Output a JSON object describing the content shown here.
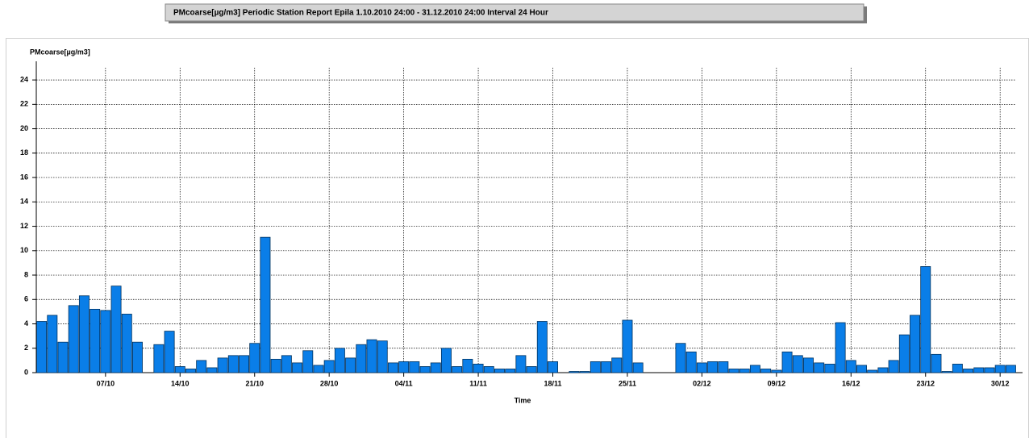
{
  "chart_data": {
    "type": "bar",
    "title": "PMcoarse[µg/m3] Periodic Station Report Epila 1.10.2010 24:00 - 31.12.2010 24:00 Interval 24 Hour",
    "y_label": "PMcoarse[µg/m3]",
    "x_label": "Time",
    "categories": [
      null,
      null,
      null,
      null,
      null,
      null,
      "07/10",
      null,
      null,
      null,
      null,
      null,
      null,
      "14/10",
      null,
      null,
      null,
      null,
      null,
      null,
      "21/10",
      null,
      null,
      null,
      null,
      null,
      null,
      "28/10",
      null,
      null,
      null,
      null,
      null,
      null,
      "04/11",
      null,
      null,
      null,
      null,
      null,
      null,
      "11/11",
      null,
      null,
      null,
      null,
      null,
      null,
      "18/11",
      null,
      null,
      null,
      null,
      null,
      null,
      "25/11",
      null,
      null,
      null,
      null,
      null,
      null,
      "02/12",
      null,
      null,
      null,
      null,
      null,
      null,
      "09/12",
      null,
      null,
      null,
      null,
      null,
      null,
      "16/12",
      null,
      null,
      null,
      null,
      null,
      null,
      "23/12",
      null,
      null,
      null,
      null,
      null,
      null,
      "30/12",
      null
    ],
    "values": [
      4.2,
      4.7,
      2.5,
      5.5,
      6.3,
      5.2,
      5.1,
      7.1,
      4.8,
      2.5,
      null,
      2.3,
      3.4,
      0.5,
      0.3,
      1.0,
      0.4,
      1.2,
      1.4,
      1.4,
      2.4,
      11.1,
      1.1,
      1.4,
      0.8,
      1.8,
      0.6,
      1.0,
      2.0,
      1.2,
      2.3,
      2.7,
      2.6,
      0.8,
      0.9,
      0.9,
      0.5,
      0.8,
      2.0,
      0.5,
      1.1,
      0.7,
      0.5,
      0.3,
      0.3,
      1.4,
      0.5,
      4.2,
      0.9,
      null,
      0.1,
      0.1,
      0.9,
      0.9,
      1.2,
      4.3,
      0.8,
      null,
      null,
      null,
      2.4,
      1.7,
      0.8,
      0.9,
      0.9,
      0.3,
      0.3,
      0.6,
      0.3,
      0.2,
      1.7,
      1.4,
      1.2,
      0.8,
      0.7,
      4.1,
      1.0,
      0.6,
      0.2,
      0.4,
      1.0,
      3.1,
      4.7,
      8.7,
      1.5,
      0.1,
      0.7,
      0.3,
      0.4,
      0.4,
      0.6,
      0.6
    ],
    "color": "#0a7ee8",
    "ylim": [
      0,
      25
    ],
    "yticks": [
      0,
      2,
      4,
      6,
      8,
      10,
      12,
      14,
      16,
      18,
      20,
      22,
      24
    ],
    "grid": true
  }
}
